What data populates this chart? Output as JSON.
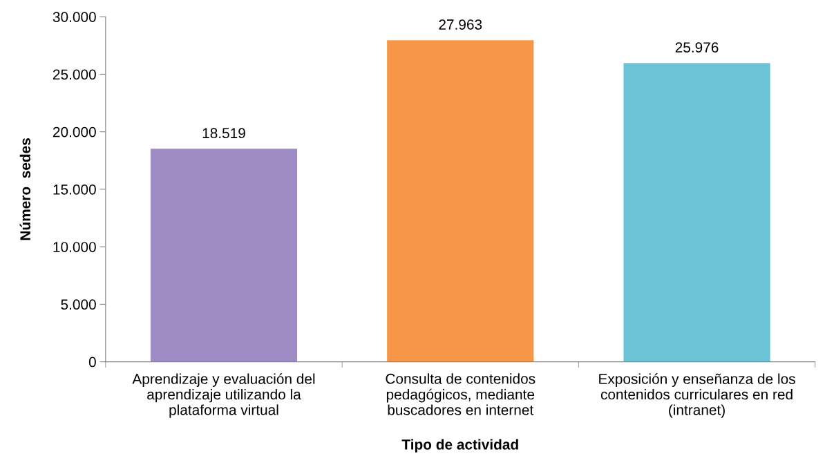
{
  "chart_data": {
    "type": "bar",
    "xlabel": "Tipo de actividad",
    "ylabel": "Número  sedes",
    "categories": [
      "Aprendizaje y evaluación del\naprendizaje utilizando la\nplataforma virtual",
      "Consulta de contenidos\npedagógicos, mediante\nbuscadores en internet",
      "Exposición y enseñanza de los\ncontenidos curriculares en red\n(intranet)"
    ],
    "values": [
      18519,
      27963,
      25976
    ],
    "colors": [
      "#a08cc4",
      "#f79646",
      "#6cc3d5"
    ],
    "value_labels": [
      "18.519",
      "27.963",
      "25.976"
    ],
    "ylim": [
      0,
      30000
    ],
    "yticks": [
      0,
      {
        "value": 5000,
        "label": "5.000"
      },
      {
        "value": 10000,
        "label": "10.000"
      },
      {
        "value": 15000,
        "label": "15.000"
      },
      {
        "value": 20000,
        "label": "20.000"
      },
      {
        "value": 25000,
        "label": "25.000"
      },
      {
        "value": 30000,
        "label": "30.000"
      }
    ],
    "grid": false,
    "legend": false
  }
}
